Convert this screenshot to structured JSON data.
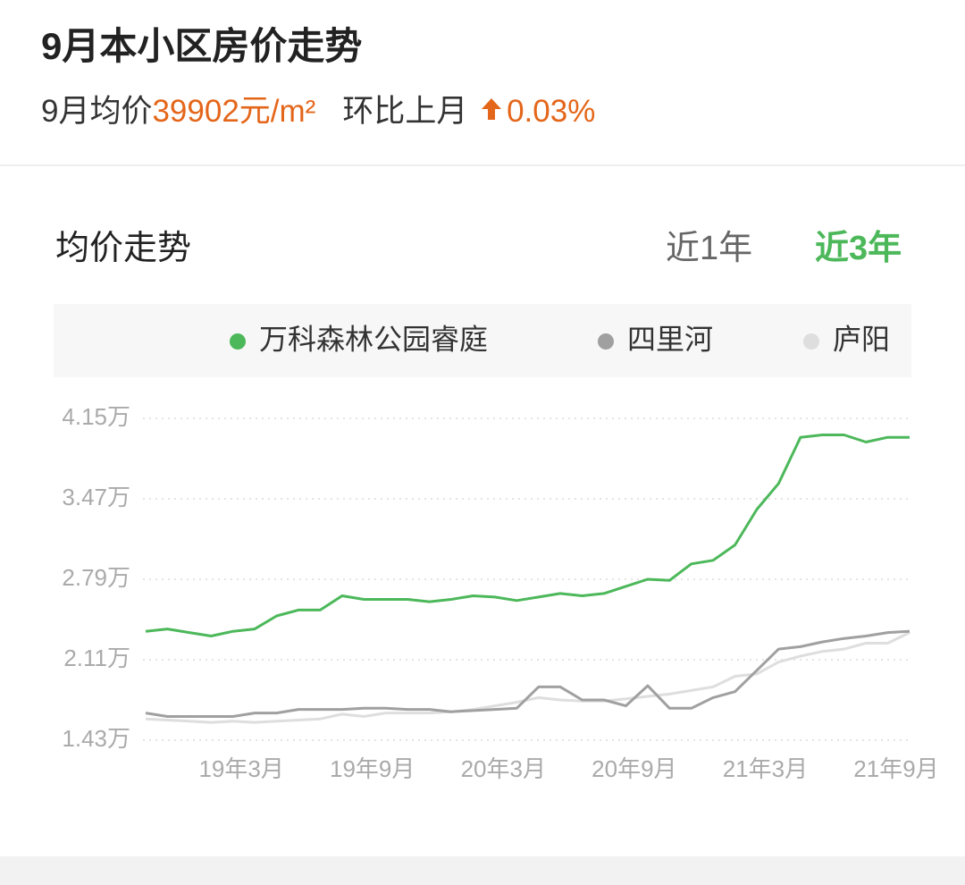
{
  "header": {
    "title": "9月本小区房价走势",
    "avg_label": "9月均价",
    "avg_price": "39902元/m²",
    "mom_label": "环比上月",
    "mom_change": "0.03%"
  },
  "section_title": "均价走势",
  "tabs": [
    {
      "label": "近1年",
      "active": false
    },
    {
      "label": "近3年",
      "active": true
    }
  ],
  "chart_data": {
    "type": "line",
    "categories": [
      null,
      null,
      null,
      null,
      null,
      "19年3月",
      null,
      null,
      null,
      null,
      null,
      "19年9月",
      null,
      null,
      null,
      null,
      null,
      "20年3月",
      null,
      null,
      null,
      null,
      null,
      "20年9月",
      null,
      null,
      null,
      null,
      null,
      "21年3月",
      null,
      null,
      null,
      null,
      null,
      "21年9月"
    ],
    "series": [
      {
        "name": "万科森林公园睿庭",
        "color": "#4cb85a",
        "values": [
          2.35,
          2.37,
          2.34,
          2.31,
          2.35,
          2.37,
          2.48,
          2.53,
          2.53,
          2.65,
          2.62,
          2.62,
          2.62,
          2.6,
          2.62,
          2.65,
          2.64,
          2.61,
          2.64,
          2.67,
          2.65,
          2.67,
          2.73,
          2.79,
          2.78,
          2.92,
          2.95,
          3.08,
          3.38,
          3.6,
          3.99,
          4.01,
          4.01,
          3.95,
          3.99,
          3.99
        ]
      },
      {
        "name": "四里河",
        "color": "#a0a0a0",
        "values": [
          1.66,
          1.63,
          1.63,
          1.63,
          1.63,
          1.66,
          1.66,
          1.69,
          1.69,
          1.69,
          1.7,
          1.7,
          1.69,
          1.69,
          1.67,
          1.68,
          1.69,
          1.7,
          1.88,
          1.88,
          1.77,
          1.77,
          1.72,
          1.89,
          1.7,
          1.7,
          1.79,
          1.84,
          2.02,
          2.2,
          2.22,
          2.26,
          2.29,
          2.31,
          2.34,
          2.35
        ]
      },
      {
        "name": "庐阳",
        "color": "#dedede",
        "values": [
          1.61,
          1.6,
          1.59,
          1.58,
          1.59,
          1.58,
          1.59,
          1.6,
          1.61,
          1.65,
          1.63,
          1.66,
          1.66,
          1.66,
          1.67,
          1.69,
          1.72,
          1.75,
          1.79,
          1.77,
          1.76,
          1.76,
          1.78,
          1.8,
          1.82,
          1.85,
          1.88,
          1.97,
          1.99,
          2.09,
          2.14,
          2.18,
          2.2,
          2.25,
          2.25,
          2.34
        ]
      }
    ],
    "ylim": [
      1.43,
      4.15
    ],
    "yticks": [
      {
        "value": 1.43,
        "label": "1.43万"
      },
      {
        "value": 2.11,
        "label": "2.11万"
      },
      {
        "value": 2.79,
        "label": "2.79万"
      },
      {
        "value": 3.47,
        "label": "3.47万"
      },
      {
        "value": 4.15,
        "label": "4.15万"
      }
    ],
    "grid": true
  }
}
